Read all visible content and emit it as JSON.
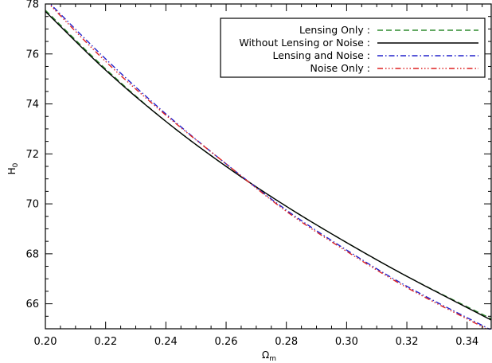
{
  "chart_data": {
    "type": "line",
    "title": "",
    "xlabel": "Ω",
    "xlabel_sub": "m",
    "ylabel": "H",
    "ylabel_sub": "0",
    "xlim": [
      0.2,
      0.348
    ],
    "ylim": [
      65,
      78
    ],
    "xticks": [
      0.2,
      0.22,
      0.24,
      0.26,
      0.28,
      0.3,
      0.32,
      0.34
    ],
    "xtick_labels": [
      "0.20",
      "0.22",
      "0.24",
      "0.26",
      "0.28",
      "0.30",
      "0.32",
      "0.34"
    ],
    "yticks": [
      66,
      68,
      70,
      72,
      74,
      76,
      78
    ],
    "ytick_labels": [
      "66",
      "68",
      "70",
      "72",
      "74",
      "76",
      "78"
    ],
    "grid": false,
    "legend_position": "top-right",
    "series": [
      {
        "name": "Lensing Only :",
        "color": "#2e8b2e",
        "dash": "dashed",
        "x": [
          0.2,
          0.22,
          0.24,
          0.26,
          0.28,
          0.3,
          0.32,
          0.348
        ],
        "y": [
          77.75,
          75.4,
          73.3,
          71.5,
          69.9,
          68.45,
          67.1,
          65.4
        ]
      },
      {
        "name": "Without Lensing or Noise :",
        "color": "#000000",
        "dash": "solid",
        "x": [
          0.2,
          0.22,
          0.24,
          0.26,
          0.28,
          0.3,
          0.32,
          0.348
        ],
        "y": [
          77.7,
          75.35,
          73.3,
          71.5,
          69.9,
          68.45,
          67.1,
          65.35
        ]
      },
      {
        "name": "Lensing and Noise :",
        "color": "#2222cc",
        "dash": "dashdot",
        "x": [
          0.2,
          0.22,
          0.24,
          0.26,
          0.28,
          0.3,
          0.32,
          0.348
        ],
        "y": [
          78.2,
          75.8,
          73.6,
          71.6,
          69.75,
          68.15,
          66.7,
          64.95
        ]
      },
      {
        "name": "Noise Only :",
        "color": "#dd2222",
        "dash": "dashdotdotdot",
        "x": [
          0.2,
          0.22,
          0.24,
          0.26,
          0.28,
          0.3,
          0.32,
          0.348
        ],
        "y": [
          78.15,
          75.7,
          73.55,
          71.6,
          69.7,
          68.1,
          66.65,
          64.9
        ]
      }
    ]
  }
}
